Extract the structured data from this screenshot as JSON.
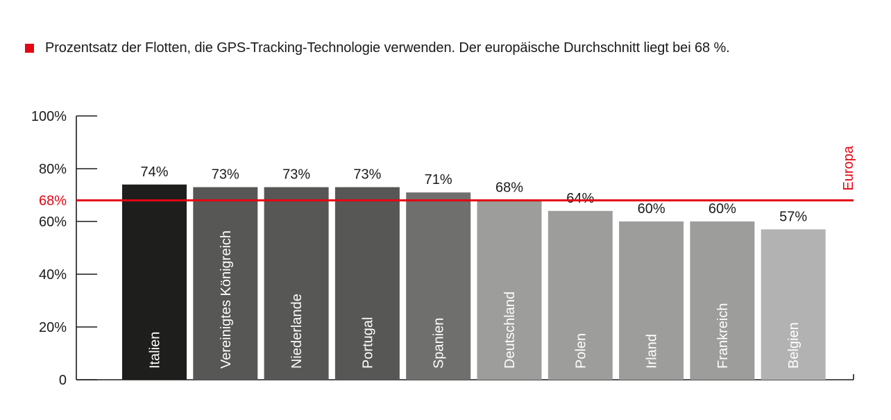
{
  "legend": {
    "text": "Prozentsatz der Flotten, die GPS-Tracking-Technologie verwenden. Der europäische Durchschnitt liegt bei 68 %.",
    "color": "#e30613"
  },
  "chart_data": {
    "type": "bar",
    "categories": [
      "Italien",
      "Vereinigtes Königreich",
      "Niederlande",
      "Portugal",
      "Spanien",
      "Deutschland",
      "Polen",
      "Irland",
      "Frankreich",
      "Belgien"
    ],
    "values": [
      74,
      73,
      73,
      73,
      71,
      68,
      64,
      60,
      60,
      57
    ],
    "value_labels": [
      "74%",
      "73%",
      "73%",
      "73%",
      "71%",
      "68%",
      "64%",
      "60%",
      "60%",
      "57%"
    ],
    "bar_colors": [
      "#1e1e1c",
      "#575756",
      "#575756",
      "#575756",
      "#6f6f6e",
      "#9d9d9c",
      "#9d9d9c",
      "#9d9d9c",
      "#9d9d9c",
      "#b2b2b2"
    ],
    "ylim": [
      0,
      100
    ],
    "yticks": [
      0,
      20,
      40,
      60,
      80,
      100
    ],
    "ytick_labels": [
      "0",
      "20%",
      "40%",
      "60%",
      "80%",
      "100%"
    ],
    "reference_line": {
      "value": 68,
      "label": "68%",
      "name": "Europa",
      "color": "#e30613"
    },
    "grid": false,
    "legend_position": "top-left"
  }
}
